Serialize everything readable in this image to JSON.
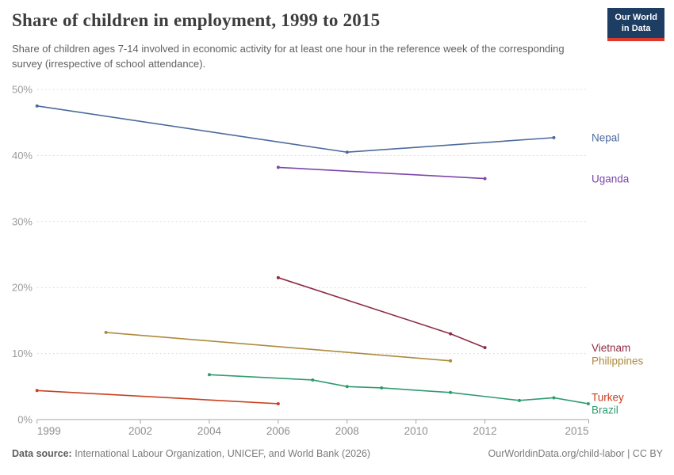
{
  "header": {
    "title": "Share of children in employment, 1999 to 2015",
    "subtitle": "Share of children ages 7-14 involved in economic activity for at least one hour in the reference week of the corresponding survey (irrespective of school attendance).",
    "logo": {
      "line1": "Our World",
      "line2": "in Data",
      "bg_color": "#1d3d63",
      "accent_color": "#d93a2d"
    }
  },
  "footer": {
    "datasource_label": "Data source:",
    "datasource_value": " International Labour Organization, UNICEF, and World Bank (2026)",
    "attribution": "OurWorldinData.org/child-labor | CC BY"
  },
  "chart_data": {
    "type": "line",
    "title": "Share of children in employment, 1999 to 2015",
    "xlabel": "",
    "ylabel": "",
    "xlim": [
      1999,
      2015
    ],
    "ylim": [
      0,
      50
    ],
    "x_ticks": [
      1999,
      2002,
      2004,
      2006,
      2008,
      2010,
      2012,
      2015
    ],
    "y_ticks": [
      0,
      10,
      20,
      30,
      40,
      50
    ],
    "y_tick_suffix": "%",
    "grid": "horizontal-dashed",
    "legend_position": "right-edge-labels",
    "axis_color": "#a5a5a5",
    "gridline_color": "#dcdcdc",
    "tick_label_color": "#8f8f8f",
    "series": [
      {
        "name": "Nepal",
        "color": "#4C6A9C",
        "points": [
          [
            1999,
            47.5
          ],
          [
            2008,
            40.5
          ],
          [
            2014,
            42.7
          ]
        ]
      },
      {
        "name": "Uganda",
        "color": "#7C45AA",
        "points": [
          [
            2006,
            38.2
          ],
          [
            2012,
            36.5
          ]
        ]
      },
      {
        "name": "Vietnam",
        "color": "#8C2D43",
        "points": [
          [
            2006,
            21.5
          ],
          [
            2011,
            13.0
          ],
          [
            2012,
            10.9
          ]
        ]
      },
      {
        "name": "Philippines",
        "color": "#AE8A3E",
        "points": [
          [
            2001,
            13.2
          ],
          [
            2011,
            8.9
          ]
        ]
      },
      {
        "name": "Turkey",
        "color": "#C8401F",
        "points": [
          [
            1999,
            4.4
          ],
          [
            2006,
            2.4
          ]
        ]
      },
      {
        "name": "Brazil",
        "color": "#2E9C6F",
        "points": [
          [
            2004,
            6.8
          ],
          [
            2007,
            6.0
          ],
          [
            2008,
            5.0
          ],
          [
            2009,
            4.8
          ],
          [
            2011,
            4.1
          ],
          [
            2013,
            2.9
          ],
          [
            2014,
            3.3
          ],
          [
            2015,
            2.4
          ]
        ]
      }
    ]
  }
}
